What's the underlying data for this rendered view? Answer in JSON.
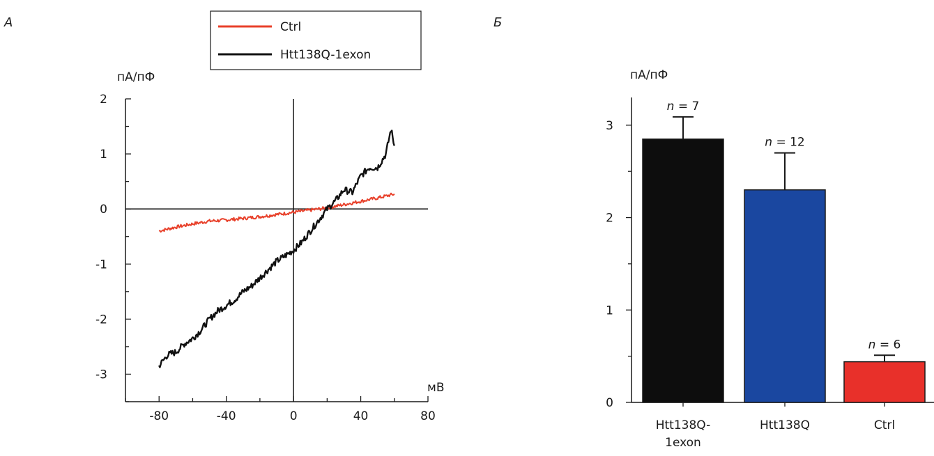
{
  "chart_data": [
    {
      "type": "line",
      "panel_label": "А",
      "ylabel": "пА/пФ",
      "xlabel": "мВ",
      "xlim": [
        -100,
        80
      ],
      "ylim": [
        -3.5,
        2
      ],
      "xticks": [
        -80,
        -40,
        0,
        40,
        80
      ],
      "xtick_labels": [
        "-80",
        "-40",
        "0",
        "40",
        "80"
      ],
      "yticks": [
        -3,
        -2,
        -1,
        0,
        1,
        2
      ],
      "ytick_labels": [
        "-3",
        "-2",
        "-1",
        "0",
        "1",
        "2"
      ],
      "legend_position": "top-center",
      "grid": false,
      "series": [
        {
          "name": "Ctrl",
          "color": "#e8402a",
          "x": [
            -80,
            -70,
            -60,
            -50,
            -40,
            -30,
            -20,
            -10,
            0,
            10,
            20,
            30,
            40,
            50,
            60
          ],
          "y": [
            -0.4,
            -0.33,
            -0.27,
            -0.22,
            -0.2,
            -0.17,
            -0.14,
            -0.1,
            -0.06,
            -0.02,
            0.02,
            0.08,
            0.14,
            0.2,
            0.27
          ]
        },
        {
          "name": "Htt138Q-1exon",
          "color": "#111111",
          "x": [
            -80,
            -75,
            -70,
            -65,
            -60,
            -55,
            -50,
            -45,
            -40,
            -35,
            -30,
            -25,
            -20,
            -15,
            -10,
            -5,
            0,
            5,
            10,
            15,
            20,
            25,
            30,
            35,
            40,
            45,
            50,
            55,
            58,
            60
          ],
          "y": [
            -2.85,
            -2.65,
            -2.6,
            -2.45,
            -2.35,
            -2.2,
            -2.0,
            -1.85,
            -1.75,
            -1.65,
            -1.5,
            -1.4,
            -1.25,
            -1.1,
            -0.95,
            -0.85,
            -0.75,
            -0.6,
            -0.4,
            -0.2,
            0.0,
            0.15,
            0.35,
            0.3,
            0.6,
            0.75,
            0.75,
            1.0,
            1.45,
            1.15
          ]
        }
      ]
    },
    {
      "type": "bar",
      "panel_label": "Б",
      "ylabel": "пА/пФ",
      "ylim": [
        0,
        3.3
      ],
      "yticks": [
        0,
        1,
        2,
        3
      ],
      "ytick_labels": [
        "0",
        "1",
        "2",
        "3"
      ],
      "categories": [
        "Htt138Q-1exon",
        "Htt138Q",
        "Ctrl"
      ],
      "category_label_lines": [
        [
          "Htt138Q-",
          "1exon"
        ],
        [
          "Htt138Q"
        ],
        [
          "Ctrl"
        ]
      ],
      "values": [
        2.85,
        2.3,
        0.44
      ],
      "errors": [
        0.24,
        0.4,
        0.07
      ],
      "colors": [
        "#0d0d0d",
        "#1a47a0",
        "#e8302a"
      ],
      "n_label_prefix": "n",
      "n_labels": [
        "= 7",
        "= 12",
        "= 6"
      ]
    }
  ]
}
